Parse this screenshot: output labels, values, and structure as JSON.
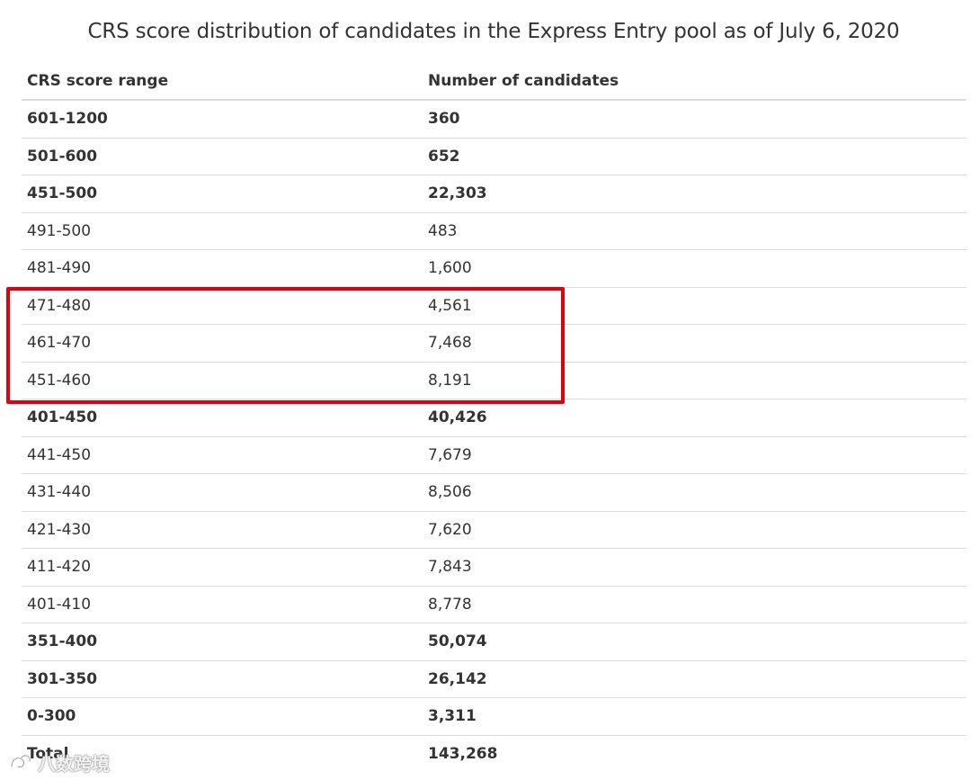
{
  "title": "CRS score distribution of candidates in the Express Entry pool as of July 6, 2020",
  "table": {
    "headers": {
      "range": "CRS score range",
      "count": "Number of candidates"
    },
    "rows": [
      {
        "range": "601-1200",
        "count": "360",
        "bold": true
      },
      {
        "range": "501-600",
        "count": "652",
        "bold": true
      },
      {
        "range": "451-500",
        "count": "22,303",
        "bold": true
      },
      {
        "range": "491-500",
        "count": "483",
        "bold": false
      },
      {
        "range": "481-490",
        "count": "1,600",
        "bold": false
      },
      {
        "range": "471-480",
        "count": "4,561",
        "bold": false
      },
      {
        "range": "461-470",
        "count": "7,468",
        "bold": false
      },
      {
        "range": "451-460",
        "count": "8,191",
        "bold": false
      },
      {
        "range": "401-450",
        "count": "40,426",
        "bold": true
      },
      {
        "range": "441-450",
        "count": "7,679",
        "bold": false
      },
      {
        "range": "431-440",
        "count": "8,506",
        "bold": false
      },
      {
        "range": "421-430",
        "count": "7,620",
        "bold": false
      },
      {
        "range": "411-420",
        "count": "7,843",
        "bold": false
      },
      {
        "range": "401-410",
        "count": "8,778",
        "bold": false
      },
      {
        "range": "351-400",
        "count": "50,074",
        "bold": true
      },
      {
        "range": "301-350",
        "count": "26,142",
        "bold": true
      },
      {
        "range": "0-300",
        "count": "3,311",
        "bold": true
      },
      {
        "range": "Total",
        "count": "143,268",
        "bold": true
      }
    ]
  },
  "highlight": {
    "color": "#e0000e"
  },
  "watermark": {
    "text": "八数跨境"
  }
}
